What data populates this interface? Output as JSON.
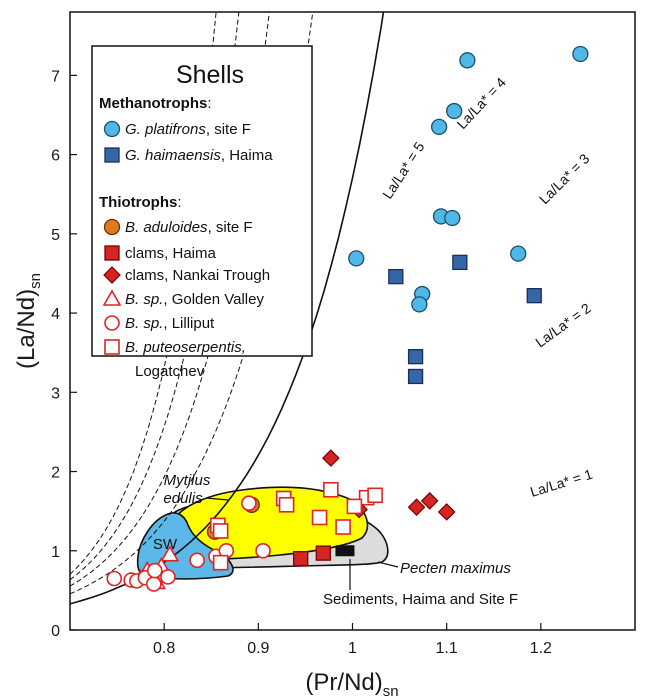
{
  "chart_data": {
    "type": "scatter",
    "title": "",
    "xlabel": "(Pr/Nd)",
    "xlabel_sub": "sn",
    "ylabel": "(La/Nd)",
    "ylabel_sub": "sn",
    "xlim": [
      0.7,
      1.3
    ],
    "ylim": [
      0,
      7.8
    ],
    "x_ticks": [
      0.8,
      0.9,
      1.0,
      1.1,
      1.2
    ],
    "x_tick_labels": [
      "0.8",
      "0.9",
      "1",
      "1.1",
      "1.2"
    ],
    "y_ticks": [
      0,
      1,
      2,
      3,
      4,
      5,
      6,
      7
    ],
    "y_tick_labels": [
      "0",
      "1",
      "2",
      "3",
      "4",
      "5",
      "6",
      "7"
    ],
    "grid": false,
    "legend": {
      "placement": "top-left",
      "title": "Shells",
      "groups": [
        {
          "heading": "Methanotrophs",
          "heading_suffix": ":",
          "entries": [
            {
              "series": "gplat",
              "italic": "G. platifrons",
              "text": ", site F"
            },
            {
              "series": "ghaim",
              "italic": "G. haimaensis",
              "text": ", Haima"
            }
          ]
        },
        {
          "heading": "Thiotrophs",
          "heading_suffix": ":",
          "entries": [
            {
              "series": "badul",
              "italic": "B. aduloides",
              "text": ", site F"
            },
            {
              "series": "clamsh",
              "italic": "",
              "text": "clams, Haima"
            },
            {
              "series": "clamsn",
              "italic": "",
              "text": "clams, Nankai Trough"
            },
            {
              "series": "bgolden",
              "italic": "B. sp.",
              "text": ", Golden Valley"
            },
            {
              "series": "blill",
              "italic": "B. sp.",
              "text": ", Lilliput"
            },
            {
              "series": "bputeo",
              "italic": "B. puteoserpentis,",
              "text": "",
              "line2": "Logatchev"
            }
          ]
        }
      ]
    },
    "reference_lines": [
      {
        "label": "La/La* = 1",
        "ratio": 1
      },
      {
        "label": "La/La* = 2",
        "ratio": 2
      },
      {
        "label": "La/La* = 3",
        "ratio": 3
      },
      {
        "label": "La/La* = 4",
        "ratio": 4
      },
      {
        "label": "La/La* = 5",
        "ratio": 5
      }
    ],
    "regions": [
      {
        "label": "SW",
        "color": "#5bb8e8"
      },
      {
        "label": "Mytilus edulis",
        "color": "#ffff00"
      },
      {
        "label": "Pecten maximus",
        "color": "#dcdcdc"
      }
    ],
    "annotations": [
      {
        "text": "Sediments, Haima and Site F",
        "x": 1.04,
        "y": 0.4
      },
      {
        "text": "Mytilus",
        "line2": "edulis"
      },
      {
        "text": "Pecten maximus"
      },
      {
        "text": "SW"
      }
    ],
    "series": [
      {
        "id": "gplat",
        "marker": "circle",
        "fill": "#4fb8e6",
        "stroke": "#1a4f6e",
        "points": [
          [
            1.122,
            7.19
          ],
          [
            1.242,
            7.27
          ],
          [
            1.108,
            6.55
          ],
          [
            1.092,
            6.35
          ],
          [
            1.094,
            5.22
          ],
          [
            1.106,
            5.2
          ],
          [
            1.176,
            4.75
          ],
          [
            1.004,
            4.69
          ],
          [
            1.074,
            4.24
          ],
          [
            1.071,
            4.11
          ]
        ]
      },
      {
        "id": "ghaim",
        "marker": "square",
        "fill": "#3466a8",
        "stroke": "#1a2f55",
        "points": [
          [
            1.046,
            4.46
          ],
          [
            1.114,
            4.64
          ],
          [
            1.193,
            4.22
          ],
          [
            1.067,
            3.45
          ],
          [
            1.067,
            3.2
          ]
        ]
      },
      {
        "id": "badul",
        "marker": "circle",
        "fill": "#e07a20",
        "stroke": "#6b3000",
        "points": [
          [
            0.893,
            1.58
          ],
          [
            0.854,
            1.24
          ]
        ]
      },
      {
        "id": "clamsh",
        "marker": "square",
        "fill": "#d42424",
        "stroke": "#7a0000",
        "points": [
          [
            0.945,
            0.9
          ],
          [
            0.969,
            0.97
          ]
        ]
      },
      {
        "id": "clamsn",
        "marker": "diamond",
        "fill": "#d42424",
        "stroke": "#7a0000",
        "points": [
          [
            0.977,
            2.17
          ],
          [
            1.007,
            1.52
          ],
          [
            1.068,
            1.55
          ],
          [
            1.082,
            1.63
          ],
          [
            1.1,
            1.49
          ]
        ]
      },
      {
        "id": "bgolden",
        "marker": "triangle-open",
        "fill": "none",
        "stroke": "#e02424",
        "points": [
          [
            0.775,
            0.65
          ],
          [
            0.782,
            0.75
          ],
          [
            0.806,
            0.95
          ],
          [
            0.787,
            0.72
          ],
          [
            0.797,
            0.8
          ],
          [
            0.793,
            0.68
          ],
          [
            0.792,
            0.6
          ]
        ]
      },
      {
        "id": "blill",
        "marker": "circle-open",
        "fill": "none",
        "stroke": "#e02424",
        "points": [
          [
            0.747,
            0.65
          ],
          [
            0.765,
            0.63
          ],
          [
            0.771,
            0.62
          ],
          [
            0.78,
            0.66
          ],
          [
            0.789,
            0.58
          ],
          [
            0.804,
            0.67
          ],
          [
            0.79,
            0.75
          ],
          [
            0.835,
            0.88
          ],
          [
            0.855,
            0.93
          ],
          [
            0.866,
            1.0
          ],
          [
            0.905,
            1.0
          ],
          [
            0.89,
            1.6
          ]
        ]
      },
      {
        "id": "bputeo",
        "marker": "square-open",
        "fill": "none",
        "stroke": "#e02424",
        "points": [
          [
            0.86,
            0.85
          ],
          [
            0.857,
            1.32
          ],
          [
            0.86,
            1.25
          ],
          [
            0.927,
            1.66
          ],
          [
            0.93,
            1.58
          ],
          [
            0.965,
            1.42
          ],
          [
            0.977,
            1.77
          ],
          [
            1.015,
            1.67
          ],
          [
            1.024,
            1.7
          ],
          [
            0.99,
            1.3
          ],
          [
            1.002,
            1.56
          ]
        ]
      },
      {
        "id": "sed",
        "marker": "rect-black",
        "fill": "#111111",
        "stroke": "#111111",
        "points": [
          [
            0.992,
            1.0
          ]
        ]
      }
    ]
  }
}
